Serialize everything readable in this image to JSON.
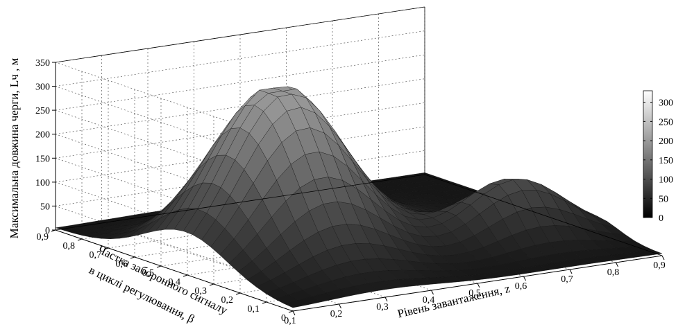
{
  "chart_data": {
    "type": "surface",
    "title": "",
    "zlabel": "Максимальна довжина черги, Lч , м",
    "xlabel": "Рівень завантаження, z",
    "ylabel_lines": [
      "Частка заборонного сигналу",
      "в циклі регулювання, β"
    ],
    "x_ticks": [
      "0,1",
      "0,2",
      "0,3",
      "0,4",
      "0,5",
      "0,6",
      "0,7",
      "0,8",
      "0,9"
    ],
    "y_ticks": [
      "0",
      "0,1",
      "0,2",
      "0,3",
      "0,4",
      "0,5",
      "0,6",
      "0,7",
      "0,8",
      "0,9"
    ],
    "z_ticks": [
      "0",
      "50",
      "100",
      "150",
      "200",
      "250",
      "300",
      "350"
    ],
    "xlim": [
      0.1,
      0.9
    ],
    "ylim": [
      0,
      0.9
    ],
    "zlim": [
      0,
      350
    ],
    "grid": true,
    "colormap": "gray",
    "colorbar": {
      "placement": "right",
      "ticks": [
        "0",
        "50",
        "100",
        "150",
        "200",
        "250",
        "300"
      ],
      "range": [
        0,
        330
      ]
    },
    "surface_peak": {
      "x": 0.3,
      "y": 0.4,
      "z": 330
    },
    "grid_resolution": 26
  }
}
